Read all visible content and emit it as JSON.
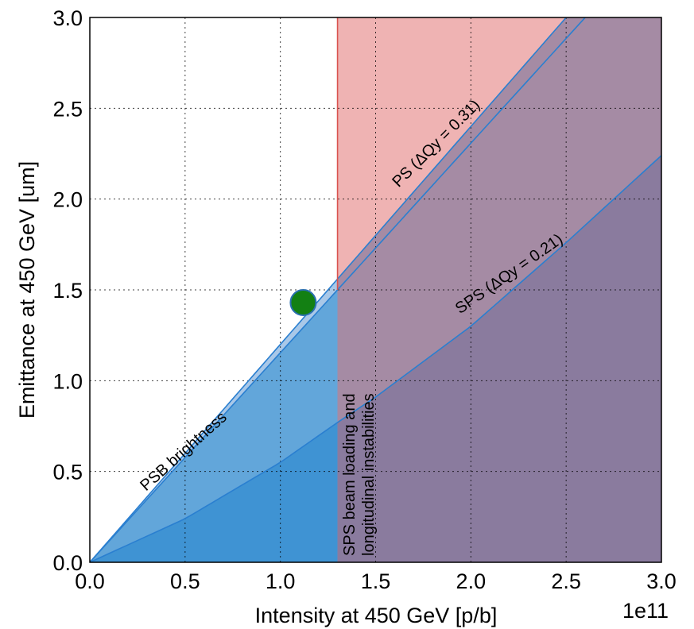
{
  "chart_data": {
    "type": "area",
    "xlabel": "Intensity at 450 GeV [p/b]",
    "ylabel": "Emittance at 450 GeV [um]",
    "x_multiplier": "1e11",
    "xlim": [
      0.0,
      3.0
    ],
    "ylim": [
      0.0,
      3.0
    ],
    "x_ticks": [
      "0.0",
      "0.5",
      "1.0",
      "1.5",
      "2.0",
      "2.5",
      "3.0"
    ],
    "y_ticks": [
      "0.0",
      "0.5",
      "1.0",
      "1.5",
      "2.0",
      "2.5",
      "3.0"
    ],
    "grid": true,
    "series": [
      {
        "name": "PSB brightness",
        "x": [
          0.0,
          0.5,
          1.0,
          1.3,
          3.0
        ],
        "y": [
          0.0,
          0.6,
          1.2,
          1.56,
          3.6
        ]
      },
      {
        "name": "PS (ΔQy = 0.31)",
        "x": [
          0.0,
          0.5,
          1.0,
          1.3,
          2.0,
          2.6
        ],
        "y": [
          0.0,
          0.577,
          1.154,
          1.5,
          2.308,
          3.0
        ]
      },
      {
        "name": "SPS (ΔQy = 0.21)",
        "x": [
          0.0,
          0.5,
          1.0,
          1.3,
          1.5,
          2.0,
          2.5,
          3.0
        ],
        "y": [
          0.0,
          0.24,
          0.55,
          0.77,
          0.91,
          1.3,
          1.76,
          2.24
        ]
      }
    ],
    "vertical_limit": {
      "label_line1": "SPS beam loading and",
      "label_line2": "longitudinal instabilities",
      "x": 1.3
    },
    "point": {
      "x": 1.12,
      "y": 1.43
    },
    "annotations": {
      "psb": "PSB brightness",
      "ps": "PS (ΔQy = 0.31)",
      "sps": "SPS (ΔQy = 0.21)"
    },
    "colors": {
      "blue_light": "#a9c8e8",
      "blue_mid": "#62a6da",
      "blue_dark": "#3f93d3",
      "line_blue": "#2a7fd0",
      "red_region": "#efb3b3",
      "purple_light": "#a58ba4",
      "purple_dark": "#8a7b9e",
      "red_line": "#d9534f",
      "point": "#138013"
    }
  }
}
